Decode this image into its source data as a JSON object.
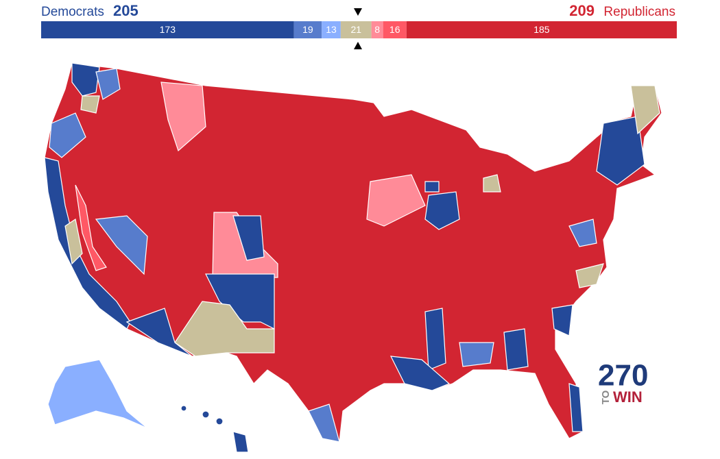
{
  "header": {
    "dem_label": "Democrats",
    "dem_total": 205,
    "rep_total": 209,
    "rep_label": "Republicans"
  },
  "bar": {
    "segments": [
      {
        "value": 173,
        "color": "#244999"
      },
      {
        "value": 19,
        "color": "#577ccc"
      },
      {
        "value": 13,
        "color": "#8aafff"
      },
      {
        "value": 21,
        "color": "#c9c09b"
      },
      {
        "value": 8,
        "color": "#ff8b98"
      },
      {
        "value": 16,
        "color": "#ff5865"
      },
      {
        "value": 185,
        "color": "#d22532"
      }
    ]
  },
  "logo": {
    "number": "270",
    "to": "TO",
    "win": "WIN"
  }
}
